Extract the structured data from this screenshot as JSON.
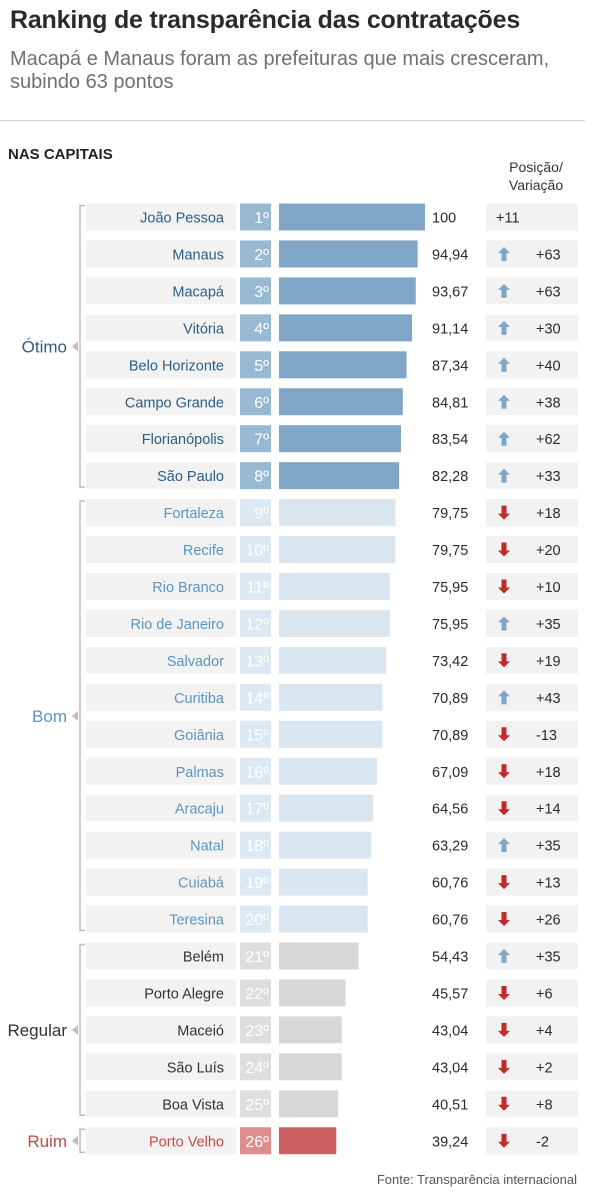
{
  "title": "Ranking de transparência das contratações",
  "subtitle": "Macapá e Manaus foram as prefeituras que mais cresceram, subindo 63 pontos",
  "section_title": "NAS CAPITAIS",
  "column_header": "Posição/ Variação",
  "source": "Fonte: Transparência internacional",
  "colors": {
    "otimo": "#7fa6c6",
    "otimo_rank": "#98b9d3",
    "otimo_text": "#2d5e86",
    "bom": "#d9e6f0",
    "bom_rank": "#dde8f1",
    "bom_text": "#5e94c1",
    "regular": "#d7d7d7",
    "regular_rank": "#dedede",
    "regular_text": "#333333",
    "ruim": "#cd6060",
    "ruim_rank": "#df8e8e",
    "ruim_text": "#c44a4a",
    "arrow_up": "#7fa6c6",
    "arrow_down": "#c02a2a",
    "row_bg": "#f2f2f2"
  },
  "chart_data": {
    "type": "bar",
    "orientation": "horizontal",
    "xlim": [
      0,
      100
    ],
    "groups": [
      {
        "name": "Ótimo",
        "key": "otimo"
      },
      {
        "name": "Bom",
        "key": "bom"
      },
      {
        "name": "Regular",
        "key": "regular"
      },
      {
        "name": "Ruim",
        "key": "ruim"
      }
    ],
    "rows": [
      {
        "city": "João Pessoa",
        "rank": "1º",
        "value": 100,
        "value_label": "100",
        "trend": "none",
        "variation": "+11",
        "group": "otimo"
      },
      {
        "city": "Manaus",
        "rank": "2º",
        "value": 94.94,
        "value_label": "94,94",
        "trend": "up",
        "variation": "+63",
        "group": "otimo"
      },
      {
        "city": "Macapá",
        "rank": "3º",
        "value": 93.67,
        "value_label": "93,67",
        "trend": "up",
        "variation": "+63",
        "group": "otimo"
      },
      {
        "city": "Vitória",
        "rank": "4º",
        "value": 91.14,
        "value_label": "91,14",
        "trend": "up",
        "variation": "+30",
        "group": "otimo"
      },
      {
        "city": "Belo Horizonte",
        "rank": "5º",
        "value": 87.34,
        "value_label": "87,34",
        "trend": "up",
        "variation": "+40",
        "group": "otimo"
      },
      {
        "city": "Campo Grande",
        "rank": "6º",
        "value": 84.81,
        "value_label": "84,81",
        "trend": "up",
        "variation": "+38",
        "group": "otimo"
      },
      {
        "city": "Florianópolis",
        "rank": "7º",
        "value": 83.54,
        "value_label": "83,54",
        "trend": "up",
        "variation": "+62",
        "group": "otimo"
      },
      {
        "city": "São Paulo",
        "rank": "8º",
        "value": 82.28,
        "value_label": "82,28",
        "trend": "up",
        "variation": "+33",
        "group": "otimo"
      },
      {
        "city": "Fortaleza",
        "rank": "9º",
        "value": 79.75,
        "value_label": "79,75",
        "trend": "down",
        "variation": "+18",
        "group": "bom"
      },
      {
        "city": "Recife",
        "rank": "10º",
        "value": 79.75,
        "value_label": "79,75",
        "trend": "down",
        "variation": "+20",
        "group": "bom"
      },
      {
        "city": "Rio Branco",
        "rank": "11º",
        "value": 75.95,
        "value_label": "75,95",
        "trend": "down",
        "variation": "+10",
        "group": "bom"
      },
      {
        "city": "Rio de Janeiro",
        "rank": "12º",
        "value": 75.95,
        "value_label": "75,95",
        "trend": "up",
        "variation": "+35",
        "group": "bom"
      },
      {
        "city": "Salvador",
        "rank": "13º",
        "value": 73.42,
        "value_label": "73,42",
        "trend": "down",
        "variation": "+19",
        "group": "bom"
      },
      {
        "city": "Curitiba",
        "rank": "14º",
        "value": 70.89,
        "value_label": "70,89",
        "trend": "up",
        "variation": "+43",
        "group": "bom"
      },
      {
        "city": "Goiânia",
        "rank": "15º",
        "value": 70.89,
        "value_label": "70,89",
        "trend": "down",
        "variation": "-13",
        "group": "bom"
      },
      {
        "city": "Palmas",
        "rank": "16º",
        "value": 67.09,
        "value_label": "67,09",
        "trend": "down",
        "variation": "+18",
        "group": "bom"
      },
      {
        "city": "Aracaju",
        "rank": "17º",
        "value": 64.56,
        "value_label": "64,56",
        "trend": "down",
        "variation": "+14",
        "group": "bom"
      },
      {
        "city": "Natal",
        "rank": "18º",
        "value": 63.29,
        "value_label": "63,29",
        "trend": "up",
        "variation": "+35",
        "group": "bom"
      },
      {
        "city": "Cuiabá",
        "rank": "19º",
        "value": 60.76,
        "value_label": "60,76",
        "trend": "down",
        "variation": "+13",
        "group": "bom"
      },
      {
        "city": "Teresina",
        "rank": "20º",
        "value": 60.76,
        "value_label": "60,76",
        "trend": "down",
        "variation": "+26",
        "group": "bom"
      },
      {
        "city": "Belém",
        "rank": "21º",
        "value": 54.43,
        "value_label": "54,43",
        "trend": "up",
        "variation": "+35",
        "group": "regular"
      },
      {
        "city": "Porto Alegre",
        "rank": "22º",
        "value": 45.57,
        "value_label": "45,57",
        "trend": "down",
        "variation": "+6",
        "group": "regular"
      },
      {
        "city": "Maceió",
        "rank": "23º",
        "value": 43.04,
        "value_label": "43,04",
        "trend": "down",
        "variation": "+4",
        "group": "regular"
      },
      {
        "city": "São Luís",
        "rank": "24º",
        "value": 43.04,
        "value_label": "43,04",
        "trend": "down",
        "variation": "+2",
        "group": "regular"
      },
      {
        "city": "Boa Vista",
        "rank": "25º",
        "value": 40.51,
        "value_label": "40,51",
        "trend": "down",
        "variation": "+8",
        "group": "regular"
      },
      {
        "city": "Porto Velho",
        "rank": "26º",
        "value": 39.24,
        "value_label": "39,24",
        "trend": "down",
        "variation": "-2",
        "group": "ruim"
      }
    ]
  }
}
